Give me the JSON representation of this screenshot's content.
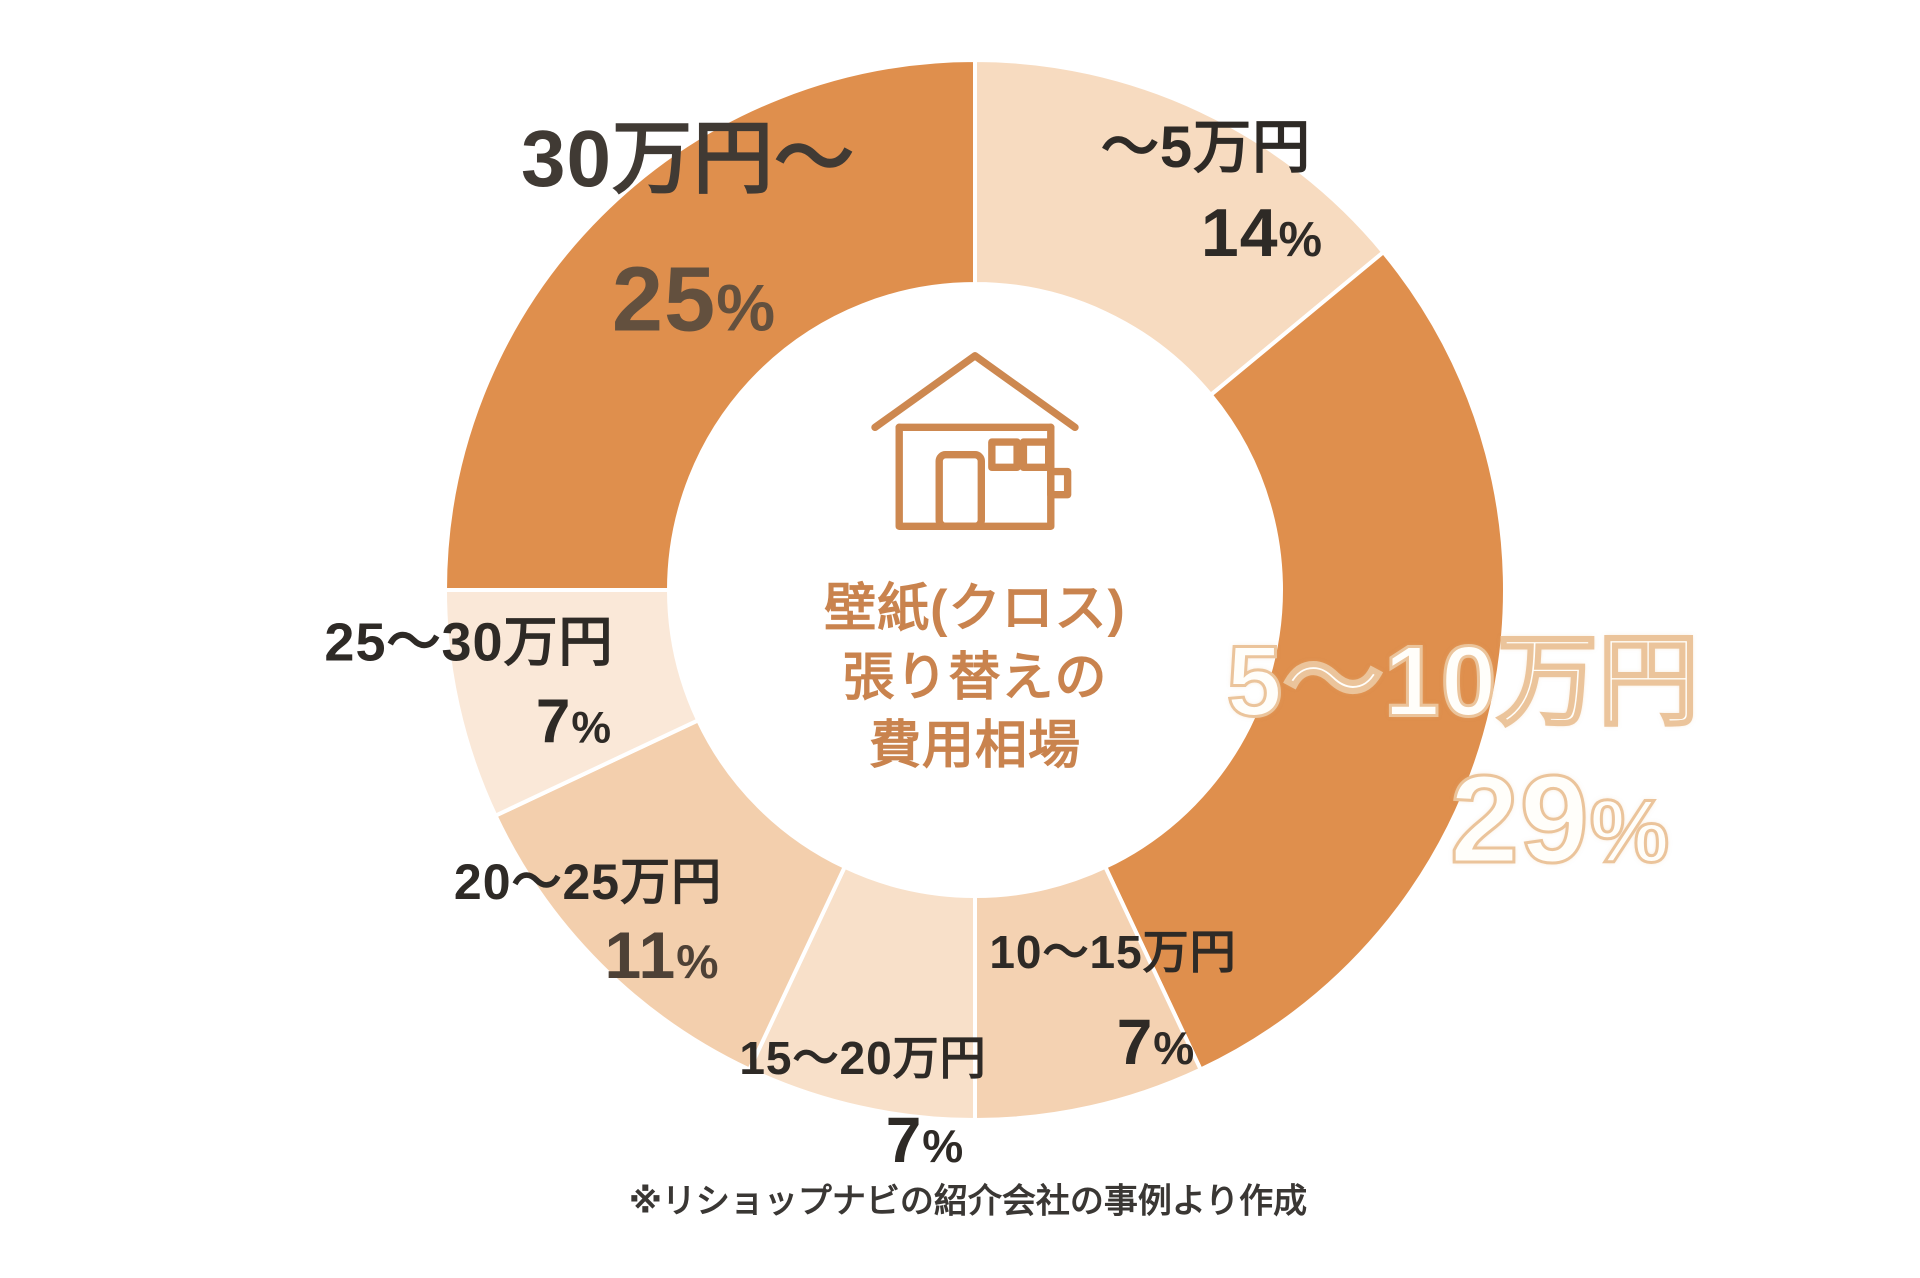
{
  "colors": {
    "background": "#ffffff",
    "accent_dark_orange": "#DF8F4D",
    "center_text": "#C9834E",
    "label_dark": "#2E2A26",
    "big_label_fill": "#FFFEFA",
    "big_label_outline": "#EBC49B"
  },
  "chart_data": {
    "type": "pie",
    "subtype": "donut",
    "title": "壁紙(クロス)張り替えの費用相場",
    "center_lines": [
      "壁紙(クロス)",
      "張り替えの",
      "費用相場"
    ],
    "center_icon": "house-icon",
    "start_angle_deg": 0,
    "direction": "clockwise",
    "legend_position": "none",
    "segments": [
      {
        "label": "〜5万円",
        "value": 14,
        "pct": "14%",
        "color": "#F7DBC0"
      },
      {
        "label": "5〜10万円",
        "value": 29,
        "pct": "29%",
        "color": "#DF8F4D"
      },
      {
        "label": "10〜15万円",
        "value": 7,
        "pct": "7%",
        "color": "#F4D2B2"
      },
      {
        "label": "15〜20万円",
        "value": 7,
        "pct": "7%",
        "color": "#F8E0C9"
      },
      {
        "label": "20〜25万円",
        "value": 11,
        "pct": "11%",
        "color": "#F3CFAD"
      },
      {
        "label": "25〜30万円",
        "value": 7,
        "pct": "7%",
        "color": "#FAE8D8"
      },
      {
        "label": "30万円〜",
        "value": 25,
        "pct": "25%",
        "color": "#DF8F4D"
      }
    ],
    "footnote": "※リショップナビの紹介会社の事例より作成"
  }
}
